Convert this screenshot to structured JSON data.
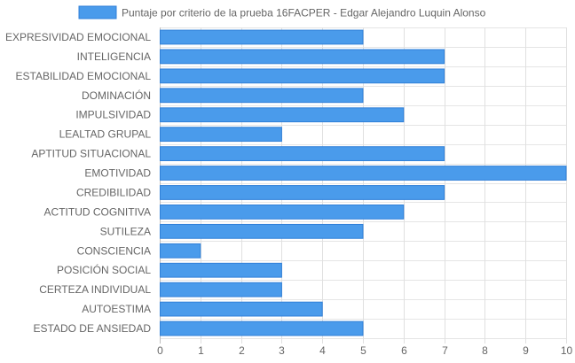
{
  "chart_data": {
    "type": "bar",
    "orientation": "horizontal",
    "legend_position": "top",
    "grid": true,
    "xlim": [
      0,
      10
    ],
    "x_ticks": [
      0,
      1,
      2,
      3,
      4,
      5,
      6,
      7,
      8,
      9,
      10
    ],
    "categories": [
      "EXPRESIVIDAD EMOCIONAL",
      "INTELIGENCIA",
      "ESTABILIDAD EMOCIONAL",
      "DOMINACIÓN",
      "IMPULSIVIDAD",
      "LEALTAD GRUPAL",
      "APTITUD SITUACIONAL",
      "EMOTIVIDAD",
      "CREDIBILIDAD",
      "ACTITUD COGNITIVA",
      "SUTILEZA",
      "CONSCIENCIA",
      "POSICIÓN SOCIAL",
      "CERTEZA INDIVIDUAL",
      "AUTOESTIMA",
      "ESTADO DE ANSIEDAD"
    ],
    "series": [
      {
        "name": "Puntaje por criterio de la prueba 16FACPER - Edgar Alejandro Luquin Alonso",
        "values": [
          5,
          7,
          7,
          5,
          6,
          3,
          7,
          10,
          7,
          6,
          5,
          1,
          3,
          3,
          4,
          5
        ],
        "color": "#4a9beb",
        "border_color": "#2f7fd8"
      }
    ]
  }
}
